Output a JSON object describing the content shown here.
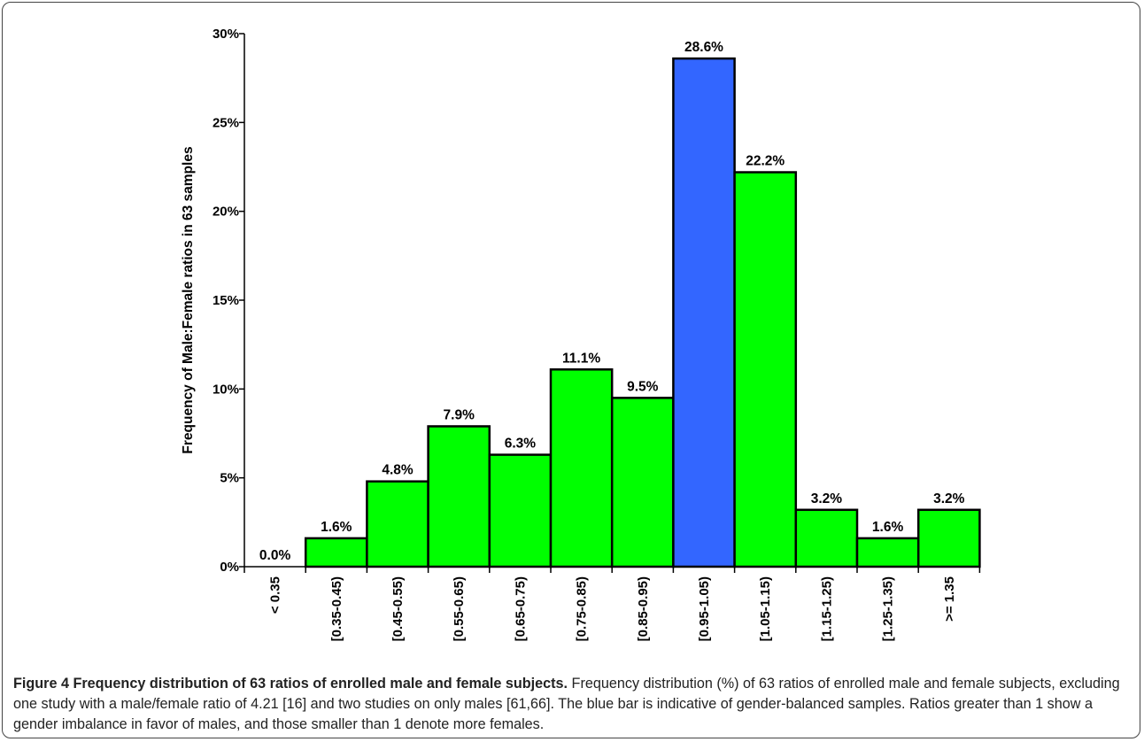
{
  "chart_data": {
    "type": "bar",
    "title": "",
    "xlabel": "",
    "ylabel": "Frequency of Male:Female ratios in 63 samples",
    "categories": [
      "< 0.35",
      "[0.35-0.45)",
      "[0.45-0.55)",
      "[0.55-0.65)",
      "[0.65-0.75)",
      "[0.75-0.85)",
      "[0.85-0.95)",
      "[0.95-1.05)",
      "[1.05-1.15)",
      "[1.15-1.25)",
      "[1.25-1.35)",
      ">= 1.35"
    ],
    "values": [
      0.0,
      1.6,
      4.8,
      7.9,
      6.3,
      11.1,
      9.5,
      28.6,
      22.2,
      3.2,
      1.6,
      3.2
    ],
    "data_labels": [
      "0.0%",
      "1.6%",
      "4.8%",
      "7.9%",
      "6.3%",
      "11.1%",
      "9.5%",
      "28.6%",
      "22.2%",
      "3.2%",
      "1.6%",
      "3.2%"
    ],
    "yticks": [
      "0%",
      "5%",
      "10%",
      "15%",
      "20%",
      "25%",
      "30%"
    ],
    "ylim": [
      0,
      30
    ],
    "grid": false,
    "highlight_index": 7,
    "colors": {
      "default": "#00ff00",
      "highlight": "#3366ff",
      "border": "#000000"
    }
  },
  "caption": {
    "title": "Figure 4 Frequency distribution of 63 ratios of enrolled male and female subjects.",
    "text": " Frequency distribution (%) of 63 ratios of enrolled male and female subjects, excluding one study with a male/female ratio of 4.21 [16] and two studies on only males [61,66]. The blue bar is indicative of gender-balanced samples. Ratios greater than 1 show a gender imbalance in favor of males, and those smaller than 1 denote more females."
  }
}
